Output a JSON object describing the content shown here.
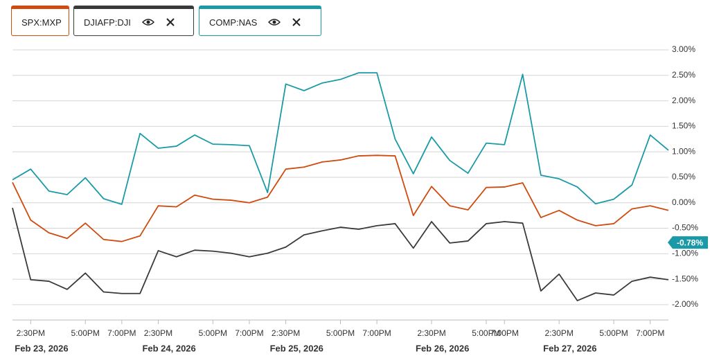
{
  "chart_data": {
    "type": "line",
    "categories": [
      null,
      "2:30PM",
      null,
      null,
      "5:00PM",
      null,
      "7:00PM",
      null,
      "2:30PM",
      null,
      null,
      "5:00PM",
      null,
      "7:00PM",
      null,
      "2:30PM",
      null,
      null,
      "5:00PM",
      null,
      "7:00PM",
      null,
      null,
      "2:30PM",
      null,
      null,
      "5:00PM",
      "7:00PM",
      null,
      null,
      "2:30PM",
      null,
      null,
      "5:00PM",
      null,
      "7:00PM",
      null
    ],
    "date_labels": [
      null,
      "Feb 23, 2026",
      null,
      null,
      null,
      null,
      null,
      null,
      "Feb 24, 2026",
      null,
      null,
      null,
      null,
      null,
      null,
      "Feb 25, 2026",
      null,
      null,
      null,
      null,
      null,
      null,
      null,
      "Feb 26, 2026",
      null,
      null,
      null,
      null,
      null,
      null,
      "Feb 27, 2026",
      null,
      null,
      null,
      null,
      null,
      null
    ],
    "series": [
      {
        "name": "SPX:MXP",
        "color": "#cf4a0c",
        "values": [
          0.4,
          -0.34,
          -0.59,
          -0.7,
          -0.4,
          -0.72,
          -0.76,
          -0.65,
          -0.06,
          -0.08,
          0.15,
          0.07,
          0.05,
          0.0,
          0.11,
          0.66,
          0.7,
          0.8,
          0.84,
          0.92,
          0.93,
          0.92,
          -0.25,
          0.32,
          -0.06,
          -0.14,
          0.3,
          0.31,
          0.39,
          -0.29,
          -0.15,
          -0.34,
          -0.45,
          -0.41,
          -0.12,
          -0.06,
          -0.15
        ]
      },
      {
        "name": "DJIAFP:DJI",
        "color": "#3a3a3a",
        "values": [
          -0.1,
          -1.51,
          -1.54,
          -1.7,
          -1.38,
          -1.75,
          -1.78,
          -1.78,
          -0.94,
          -1.06,
          -0.93,
          -0.95,
          -0.99,
          -1.06,
          -0.99,
          -0.87,
          -0.63,
          -0.55,
          -0.48,
          -0.52,
          -0.45,
          -0.41,
          -0.89,
          -0.37,
          -0.79,
          -0.75,
          -0.41,
          -0.37,
          -0.4,
          -1.73,
          -1.4,
          -1.92,
          -1.77,
          -1.81,
          -1.54,
          -1.46,
          -1.51
        ]
      },
      {
        "name": "COMP:NAS",
        "color": "#1a9aa6",
        "values": [
          0.45,
          0.66,
          0.23,
          0.16,
          0.49,
          0.08,
          -0.03,
          1.36,
          1.07,
          1.11,
          1.33,
          1.15,
          1.14,
          1.12,
          0.2,
          2.33,
          2.2,
          2.35,
          2.42,
          2.55,
          2.55,
          1.25,
          0.57,
          1.29,
          0.83,
          0.58,
          1.17,
          1.14,
          2.52,
          0.54,
          0.47,
          0.31,
          -0.02,
          0.07,
          0.35,
          1.33,
          1.03
        ]
      }
    ],
    "ylim": [
      -2.3,
      3.0
    ],
    "yticks": [
      {
        "value": 3,
        "label": "3.00%"
      },
      {
        "value": 2.5,
        "label": "2.50%"
      },
      {
        "value": 2,
        "label": "2.00%"
      },
      {
        "value": 1.5,
        "label": "1.50%"
      },
      {
        "value": 1,
        "label": "1.00%"
      },
      {
        "value": 0.5,
        "label": "0.50%"
      },
      {
        "value": 0,
        "label": "0.00%"
      },
      {
        "value": -0.5,
        "label": "-0.50%"
      },
      {
        "value": -1,
        "label": "-1.00%"
      },
      {
        "value": -1.5,
        "label": "-1.50%"
      },
      {
        "value": -2,
        "label": "-2.00%"
      }
    ],
    "grid": true,
    "annotation": {
      "value": -0.78,
      "label": "-0.78%"
    }
  }
}
